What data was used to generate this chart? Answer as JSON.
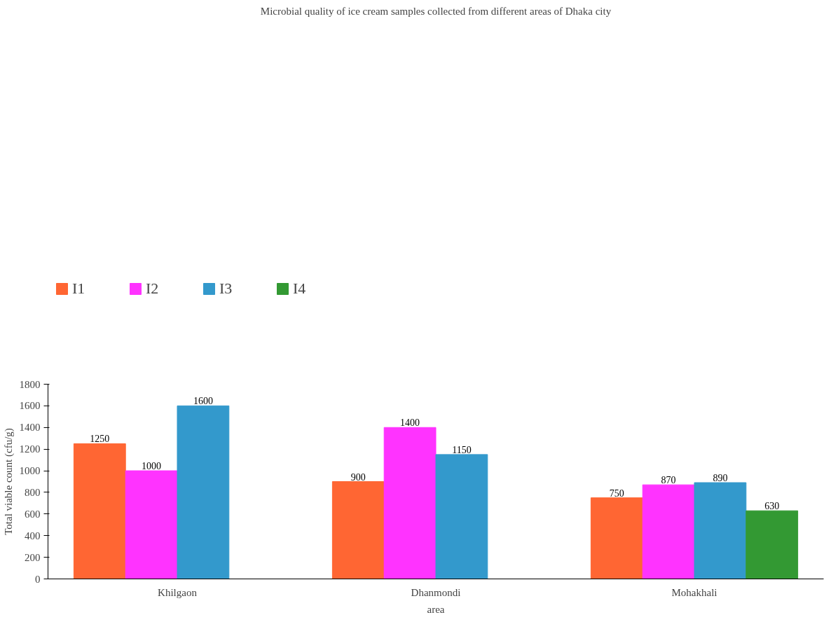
{
  "chart_data": {
    "type": "bar",
    "title": "Microbial quality of ice cream samples collected from different areas of Dhaka city",
    "xlabel": "area",
    "ylabel": "Total viable count (cfu/g)",
    "categories": [
      "Khilgaon",
      "Dhanmondi",
      "Mohakhali"
    ],
    "series": [
      {
        "name": "I1",
        "color": "#ff6633",
        "values": [
          1250,
          900,
          750
        ]
      },
      {
        "name": "I2",
        "color": "#ff33ff",
        "values": [
          1000,
          1400,
          870
        ]
      },
      {
        "name": "I3",
        "color": "#3399cc",
        "values": [
          1600,
          1150,
          890
        ]
      },
      {
        "name": "I4",
        "color": "#339933",
        "values": [
          null,
          null,
          630
        ]
      }
    ],
    "ylim": [
      0,
      1800
    ],
    "yticks": [
      0,
      200,
      400,
      600,
      800,
      1000,
      1200,
      1400,
      1600,
      1800
    ],
    "grid": false,
    "legend": "top left",
    "data_labels": true
  }
}
